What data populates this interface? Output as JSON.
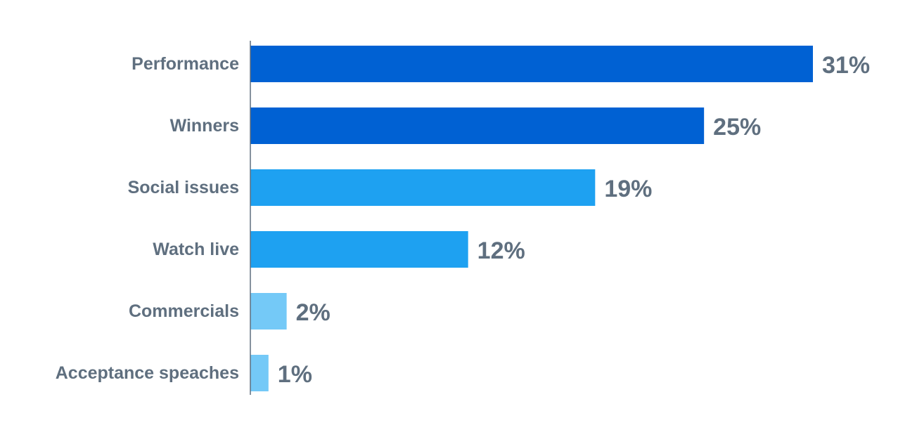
{
  "chart_data": {
    "type": "bar",
    "orientation": "horizontal",
    "categories": [
      "Performance",
      "Winners",
      "Social issues",
      "Watch live",
      "Commercials",
      "Acceptance speaches"
    ],
    "values": [
      31,
      25,
      19,
      12,
      2,
      1
    ],
    "value_labels": [
      "31%",
      "25%",
      "19%",
      "12%",
      "2%",
      "1%"
    ],
    "bar_colors": [
      "#0061d3",
      "#0061d3",
      "#1ea1f1",
      "#1ea1f1",
      "#74c9f7",
      "#74c9f7"
    ],
    "value_unit": "%",
    "title": "",
    "xlabel": "",
    "ylabel": "",
    "grid": false,
    "legend": "none"
  },
  "colors": {
    "label_text": "#5f6f7f",
    "axis_line": "#5f6f7f"
  }
}
